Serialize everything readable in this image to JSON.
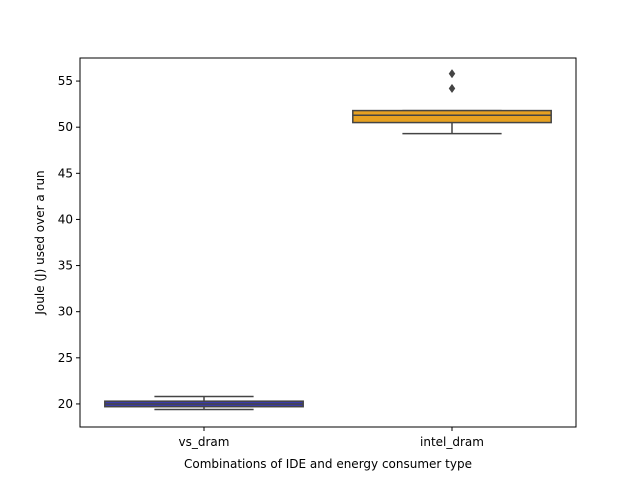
{
  "chart_data": {
    "type": "box",
    "title": "",
    "xlabel": "Combinations of IDE and energy consumer type",
    "ylabel": "Joule (J) used over a run",
    "ylim": [
      17.5,
      57.5
    ],
    "y_ticks": [
      20,
      25,
      30,
      35,
      40,
      45,
      50,
      55
    ],
    "grid": false,
    "categories": [
      "vs_dram",
      "intel_dram"
    ],
    "boxes": [
      {
        "category": "vs_dram",
        "color": "#3b3bac",
        "whisker_low": 19.4,
        "q1": 19.7,
        "median": 20.0,
        "q3": 20.3,
        "whisker_high": 20.8,
        "outliers": []
      },
      {
        "category": "intel_dram",
        "color": "#e6a121",
        "whisker_low": 49.3,
        "q1": 50.5,
        "median": 51.3,
        "q3": 51.8,
        "whisker_high": 51.8,
        "outliers": [
          54.2,
          55.8
        ]
      }
    ],
    "outline_color": "#444444"
  }
}
